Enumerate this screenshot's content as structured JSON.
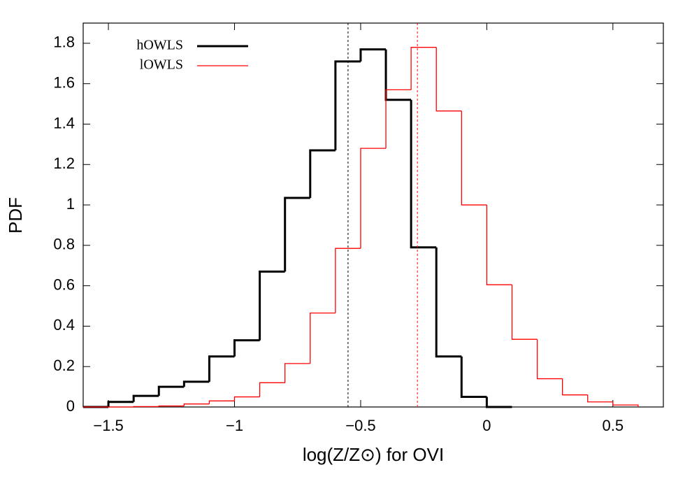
{
  "chart_data": {
    "type": "histogram",
    "xlabel": "log(Z/Z⊙) for OVI",
    "ylabel": "PDF",
    "bins": [
      -1.6,
      -1.5,
      -1.4,
      -1.3,
      -1.2,
      -1.1,
      -1.0,
      -0.9,
      -0.8,
      -0.7,
      -0.6,
      -0.5,
      -0.4,
      -0.3,
      -0.2,
      -0.1,
      0,
      0.1,
      0.2,
      0.3,
      0.4,
      0.5,
      0.6,
      0.7
    ],
    "series": [
      {
        "name": "hOWLS",
        "color": "#000000",
        "line_width": 3,
        "marker_x": -0.55,
        "values": [
          0,
          0.025,
          0.055,
          0.1,
          0.125,
          0.25,
          0.33,
          0.67,
          1.035,
          1.27,
          1.71,
          1.77,
          1.52,
          0.79,
          0.25,
          0.05,
          0,
          null,
          null,
          null,
          null,
          null,
          null
        ]
      },
      {
        "name": "lOWLS",
        "color": "#ff0000",
        "line_width": 1.3,
        "marker_x": -0.275,
        "values": [
          0,
          0,
          0.002,
          0.005,
          0.015,
          0.03,
          0.05,
          0.12,
          0.215,
          0.465,
          0.785,
          1.28,
          1.57,
          1.78,
          1.465,
          1.0,
          0.605,
          0.335,
          0.14,
          0.06,
          0.025,
          0.01,
          null
        ]
      }
    ],
    "xlim": [
      -1.6,
      0.7
    ],
    "xticks": [
      {
        "value": -1.5,
        "label": "−1.5"
      },
      {
        "value": -1,
        "label": "−1"
      },
      {
        "value": -0.5,
        "label": "−0.5"
      },
      0,
      0.5
    ],
    "ylim": [
      0,
      1.9
    ],
    "yticks": [
      0,
      0.2,
      0.4,
      0.6,
      0.8,
      1,
      1.2,
      1.4,
      1.6,
      1.8
    ],
    "legend": "upper-left"
  }
}
